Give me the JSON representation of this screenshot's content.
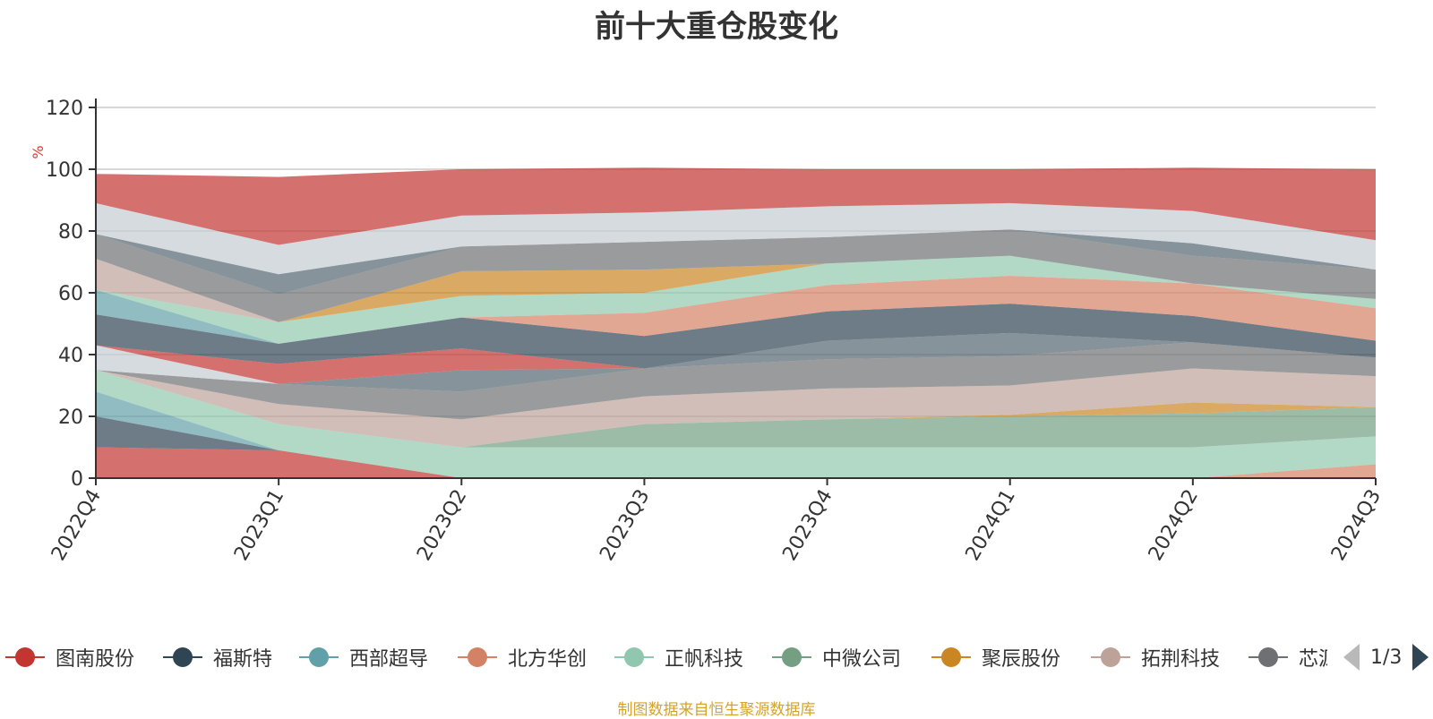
{
  "title": "前十大重仓股变化",
  "footer": "制图数据来自恒生聚源数据库",
  "legend": {
    "items": [
      {
        "name": "图南股份",
        "color": "#c23531"
      },
      {
        "name": "福斯特",
        "color": "#2f4554"
      },
      {
        "name": "西部超导",
        "color": "#61a0a8"
      },
      {
        "name": "北方华创",
        "color": "#d48265"
      },
      {
        "name": "正帆科技",
        "color": "#91c7ae"
      },
      {
        "name": "中微公司",
        "color": "#749f83"
      },
      {
        "name": "聚辰股份",
        "color": "#ca8622"
      },
      {
        "name": "拓荆科技",
        "color": "#bda29a"
      },
      {
        "name": "芯源微",
        "color": "#6e7074"
      }
    ],
    "page": "1/3"
  },
  "chart_data": {
    "type": "area",
    "stacked": true,
    "categories": [
      "2022Q4",
      "2023Q1",
      "2023Q2",
      "2023Q3",
      "2023Q4",
      "2024Q1",
      "2024Q2",
      "2024Q3"
    ],
    "ylabel": "%",
    "ylim": [
      0,
      120
    ],
    "yticks": [
      0,
      20,
      40,
      60,
      80,
      100,
      120
    ],
    "grid": true,
    "series": [
      {
        "name": "图南股份",
        "color": "#c23531",
        "values": [
          10,
          9,
          0,
          0,
          0,
          0,
          0,
          0
        ]
      },
      {
        "name": "福斯特",
        "color": "#2f4554",
        "values": [
          10,
          0,
          0,
          0,
          0,
          0,
          0,
          0
        ]
      },
      {
        "name": "西部超导",
        "color": "#61a0a8",
        "values": [
          8,
          0,
          0,
          0,
          0,
          0,
          0,
          0
        ]
      },
      {
        "name": "北方华创",
        "color": "#d48265",
        "values": [
          0,
          0,
          0,
          0,
          0,
          0,
          0,
          4.5
        ]
      },
      {
        "name": "正帆科技",
        "color": "#91c7ae",
        "values": [
          7,
          8.5,
          10,
          10,
          10,
          10,
          10,
          9
        ]
      },
      {
        "name": "中微公司",
        "color": "#749f83",
        "values": [
          0,
          0,
          0,
          7.5,
          9,
          10,
          11,
          9.5
        ]
      },
      {
        "name": "聚辰股份",
        "color": "#ca8622",
        "values": [
          0,
          0,
          0,
          0,
          0,
          0.5,
          3.5,
          0
        ]
      },
      {
        "name": "拓荆科技",
        "color": "#bda29a",
        "values": [
          0,
          6.5,
          9,
          9,
          10,
          9.5,
          11,
          10
        ]
      },
      {
        "name": "芯源微",
        "color": "#6e7074",
        "values": [
          0,
          6.5,
          9,
          9,
          9.5,
          9.5,
          8.5,
          6
        ]
      },
      {
        "name": "",
        "color": "#546570",
        "values": [
          0,
          0,
          7,
          0,
          6,
          7.5,
          0,
          0
        ]
      },
      {
        "name": "",
        "color": "#c4ccd3",
        "values": [
          8,
          0,
          0,
          0,
          0,
          0,
          0,
          0
        ]
      },
      {
        "name": "",
        "color": "#c23531",
        "values": [
          0,
          6.5,
          7,
          0,
          0,
          0,
          0,
          0
        ]
      },
      {
        "name": "",
        "color": "#2f4554",
        "values": [
          10,
          6.5,
          10,
          10.5,
          9.5,
          9.5,
          8.5,
          5.5
        ]
      },
      {
        "name": "",
        "color": "#61a0a8",
        "values": [
          8,
          0,
          0,
          0,
          0,
          0,
          0,
          0
        ]
      },
      {
        "name": "",
        "color": "#d48265",
        "values": [
          0,
          0,
          0,
          7.5,
          8.5,
          9,
          10.5,
          10.5
        ]
      },
      {
        "name": "",
        "color": "#91c7ae",
        "values": [
          0,
          7,
          7,
          6.5,
          7,
          6.5,
          0,
          3
        ]
      },
      {
        "name": "",
        "color": "#ca8622",
        "values": [
          0,
          0,
          8,
          7.5,
          0,
          0,
          0,
          0
        ]
      },
      {
        "name": "",
        "color": "#bda29a",
        "values": [
          10,
          0,
          0,
          0,
          0,
          0,
          0,
          0
        ]
      },
      {
        "name": "",
        "color": "#6e7074",
        "values": [
          8,
          9,
          8,
          9,
          8.5,
          8.5,
          9,
          9.5
        ]
      },
      {
        "name": "",
        "color": "#546570",
        "values": [
          0,
          6.5,
          0,
          0,
          0,
          0,
          4,
          0
        ]
      },
      {
        "name": "",
        "color": "#c4ccd3",
        "values": [
          10,
          9.5,
          10,
          9.5,
          10,
          8.5,
          10.5,
          9.5
        ]
      },
      {
        "name": "",
        "color": "#c23531",
        "values": [
          9.5,
          22,
          15,
          14.5,
          12,
          11,
          14,
          23
        ]
      }
    ]
  }
}
